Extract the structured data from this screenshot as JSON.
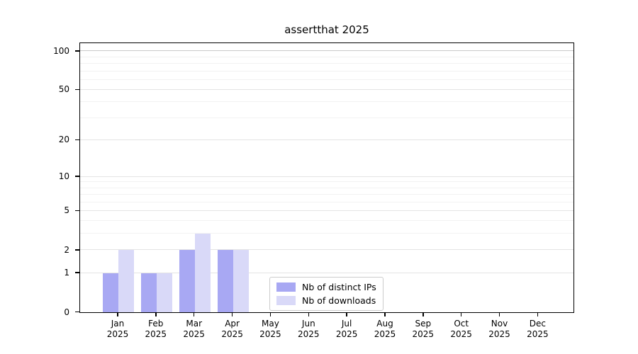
{
  "chart_data": {
    "type": "bar",
    "title": "assertthat 2025",
    "categories": [
      "Jan",
      "Feb",
      "Mar",
      "Apr",
      "May",
      "Jun",
      "Jul",
      "Aug",
      "Sep",
      "Oct",
      "Nov",
      "Dec"
    ],
    "x_year_label": "2025",
    "series": [
      {
        "name": "Nb of distinct IPs",
        "color": "#a8a8f3",
        "values": [
          1,
          1,
          2,
          2,
          0,
          0,
          0,
          0,
          0,
          0,
          0,
          0
        ]
      },
      {
        "name": "Nb of downloads",
        "color": "#d9d9f8",
        "values": [
          2,
          1,
          3,
          2,
          0,
          0,
          0,
          0,
          0,
          0,
          0,
          0
        ]
      }
    ],
    "y_scale": "log10(1+y)",
    "y_ticks": [
      0,
      1,
      2,
      5,
      10,
      20,
      50,
      100
    ],
    "y_minor_ticks": [
      3,
      4,
      6,
      7,
      8,
      9,
      30,
      40,
      60,
      70,
      80,
      90
    ],
    "ylim": [
      0,
      113
    ],
    "grid": "both",
    "legend_position": "lower center",
    "colors": {
      "grid_major": "#e4e4e4",
      "grid_minor": "#f2f2f2",
      "grid_top": "#c9c9c9",
      "spine": "#000000",
      "text": "#000000",
      "legend_border": "#cccccc",
      "background": "#ffffff"
    }
  }
}
